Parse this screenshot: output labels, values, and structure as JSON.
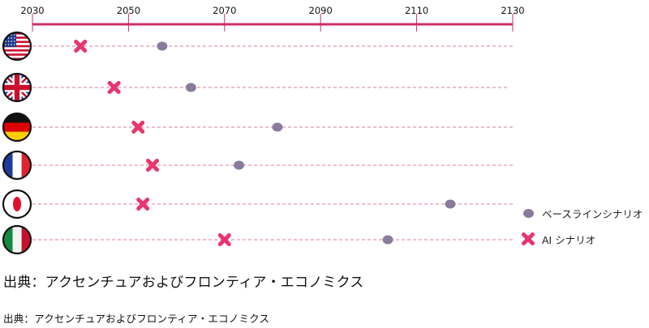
{
  "chart_data": {
    "type": "scatter",
    "orientation": "horizontal-dot-plot",
    "x_ticks": [
      2030,
      2050,
      2070,
      2090,
      2110,
      2130
    ],
    "xlim": [
      2030,
      2130
    ],
    "countries": [
      {
        "flag": "us-flag-icon",
        "baseline": 2057,
        "ai": 2040
      },
      {
        "flag": "uk-flag-icon",
        "baseline": 2063,
        "ai": 2047
      },
      {
        "flag": "germany-flag-icon",
        "baseline": 2081,
        "ai": 2052
      },
      {
        "flag": "france-flag-icon",
        "baseline": 2073,
        "ai": 2055
      },
      {
        "flag": "japan-flag-icon",
        "baseline": 2117,
        "ai": 2053
      },
      {
        "flag": "italy-flag-icon",
        "baseline": 2104,
        "ai": 2070
      }
    ],
    "series": [
      {
        "name": "ベースラインシナリオ",
        "key": "baseline",
        "marker": "circle",
        "color": "#8a7b9c"
      },
      {
        "name": "AI シナリオ",
        "key": "ai",
        "marker": "cross",
        "color": "#e8356d"
      }
    ],
    "axis_color": "#cc2f5f",
    "guide_color": "#e07a9a",
    "legend_position": "right"
  },
  "source": {
    "main": "出典：アクセンチュアおよびフロンティア・エコノミクス",
    "small": "出典：アクセンチュアおよびフロンティア・エコノミクス"
  }
}
